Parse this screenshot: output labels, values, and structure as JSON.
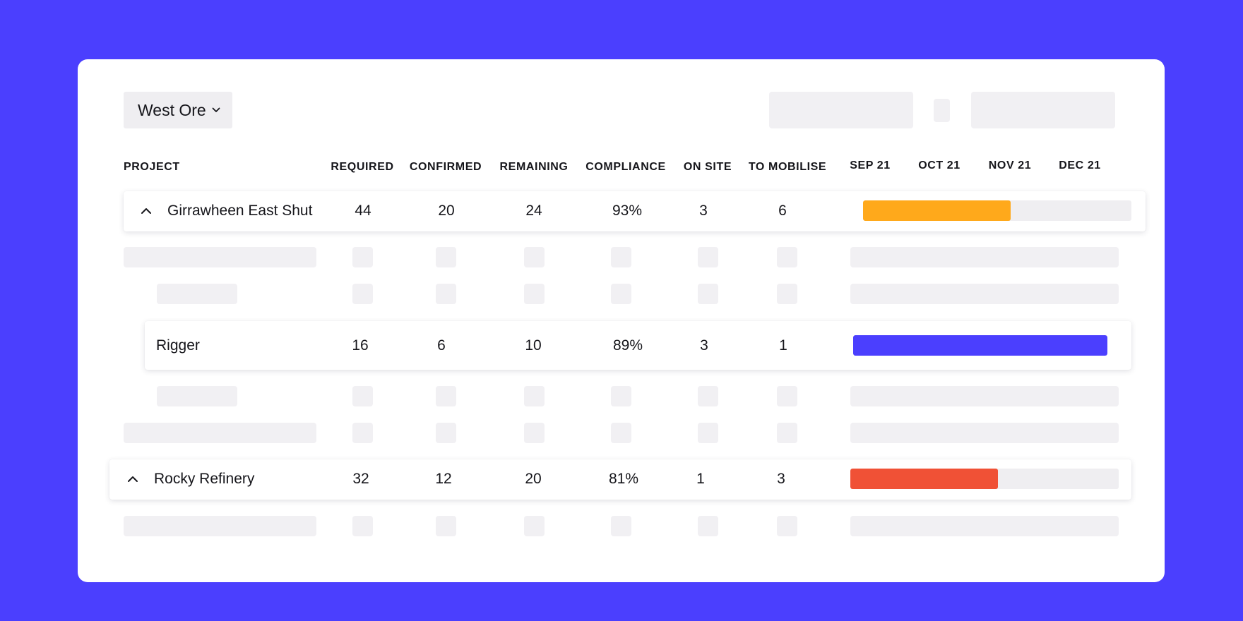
{
  "filter": {
    "selected": "West Ore"
  },
  "columns": {
    "project": "PROJECT",
    "required": "REQUIRED",
    "confirmed": "CONFIRMED",
    "remaining": "REMAINING",
    "compliance": "COMPLIANCE",
    "on_site": "ON SITE",
    "to_mobilise": "TO MOBILISE"
  },
  "timeline": {
    "months": [
      "SEP 21",
      "OCT 21",
      "NOV 21",
      "DEC 21"
    ]
  },
  "rows": {
    "girrawheen": {
      "name": "Girrawheen East Shut",
      "required": "44",
      "confirmed": "20",
      "remaining": "24",
      "compliance": "93%",
      "on_site": "3",
      "to_mobilise": "6",
      "progress": 0.55,
      "color": "#ffa91b"
    },
    "rigger": {
      "name": "Rigger",
      "required": "16",
      "confirmed": "6",
      "remaining": "10",
      "compliance": "89%",
      "on_site": "3",
      "to_mobilise": "1",
      "progress": 1.0,
      "color": "#4b3ffe"
    },
    "rocky": {
      "name": "Rocky Refinery",
      "required": "32",
      "confirmed": "12",
      "remaining": "20",
      "compliance": "81%",
      "on_site": "1",
      "to_mobilise": "3",
      "progress": 0.55,
      "color": "#f05136"
    }
  },
  "icons": {
    "dropdown": "chevron-down-icon",
    "collapse": "chevron-up-icon"
  },
  "colors": {
    "background": "#4b3ffe",
    "placeholder": "#efeef1"
  }
}
